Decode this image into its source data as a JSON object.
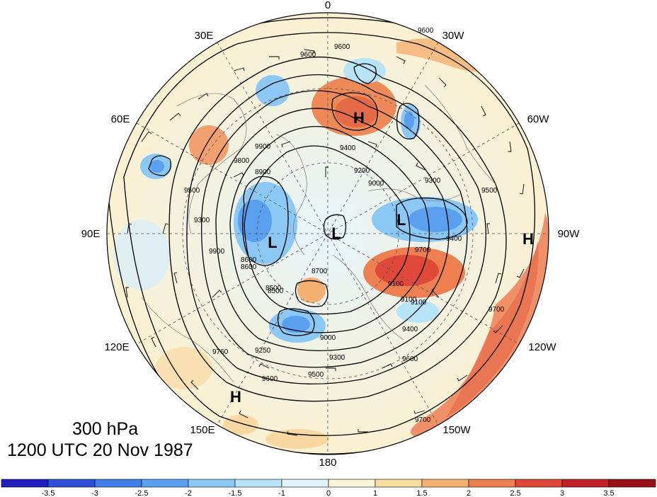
{
  "title": {
    "level": "300 hPa",
    "time": "1200 UTC 20 Nov 1987"
  },
  "longitude_labels": [
    "0",
    "30W",
    "60W",
    "90W",
    "120W",
    "150W",
    "180",
    "150E",
    "120E",
    "90E",
    "60E",
    "30E"
  ],
  "pressure_centers": [
    {
      "type": "H",
      "label": "H"
    },
    {
      "type": "H",
      "label": "H"
    },
    {
      "type": "H",
      "label": "H"
    },
    {
      "type": "L",
      "label": "L"
    },
    {
      "type": "L",
      "label": "L"
    },
    {
      "type": "L",
      "label": "L"
    }
  ],
  "contour_labels": [
    "9600",
    "9600",
    "9500",
    "9400",
    "9300",
    "9200",
    "9100",
    "9000",
    "8900",
    "8700",
    "8600",
    "8500",
    "9700",
    "9100",
    "9400",
    "9600",
    "9700",
    "9600",
    "9500",
    "9300",
    "9250",
    "9000",
    "9760",
    "9600",
    "9700",
    "9900",
    "9500",
    "9400",
    "9300",
    "9100",
    "8500",
    "8600",
    "9900",
    "9800"
  ],
  "colorbar": {
    "ticks": [
      "-3.5",
      "-3",
      "-2.5",
      "-2",
      "-1.5",
      "-1",
      "0",
      "1",
      "1.5",
      "2",
      "2.5",
      "3",
      "3.5"
    ],
    "colors": [
      "#1f1fbf",
      "#2f4fd8",
      "#3f7fe8",
      "#5aa0ef",
      "#8cc8f4",
      "#b8e4f8",
      "#e0f4fb",
      "#fbf4d8",
      "#f8dca0",
      "#f4b070",
      "#ee7f50",
      "#e0483a",
      "#c02028",
      "#9a1018"
    ]
  }
}
